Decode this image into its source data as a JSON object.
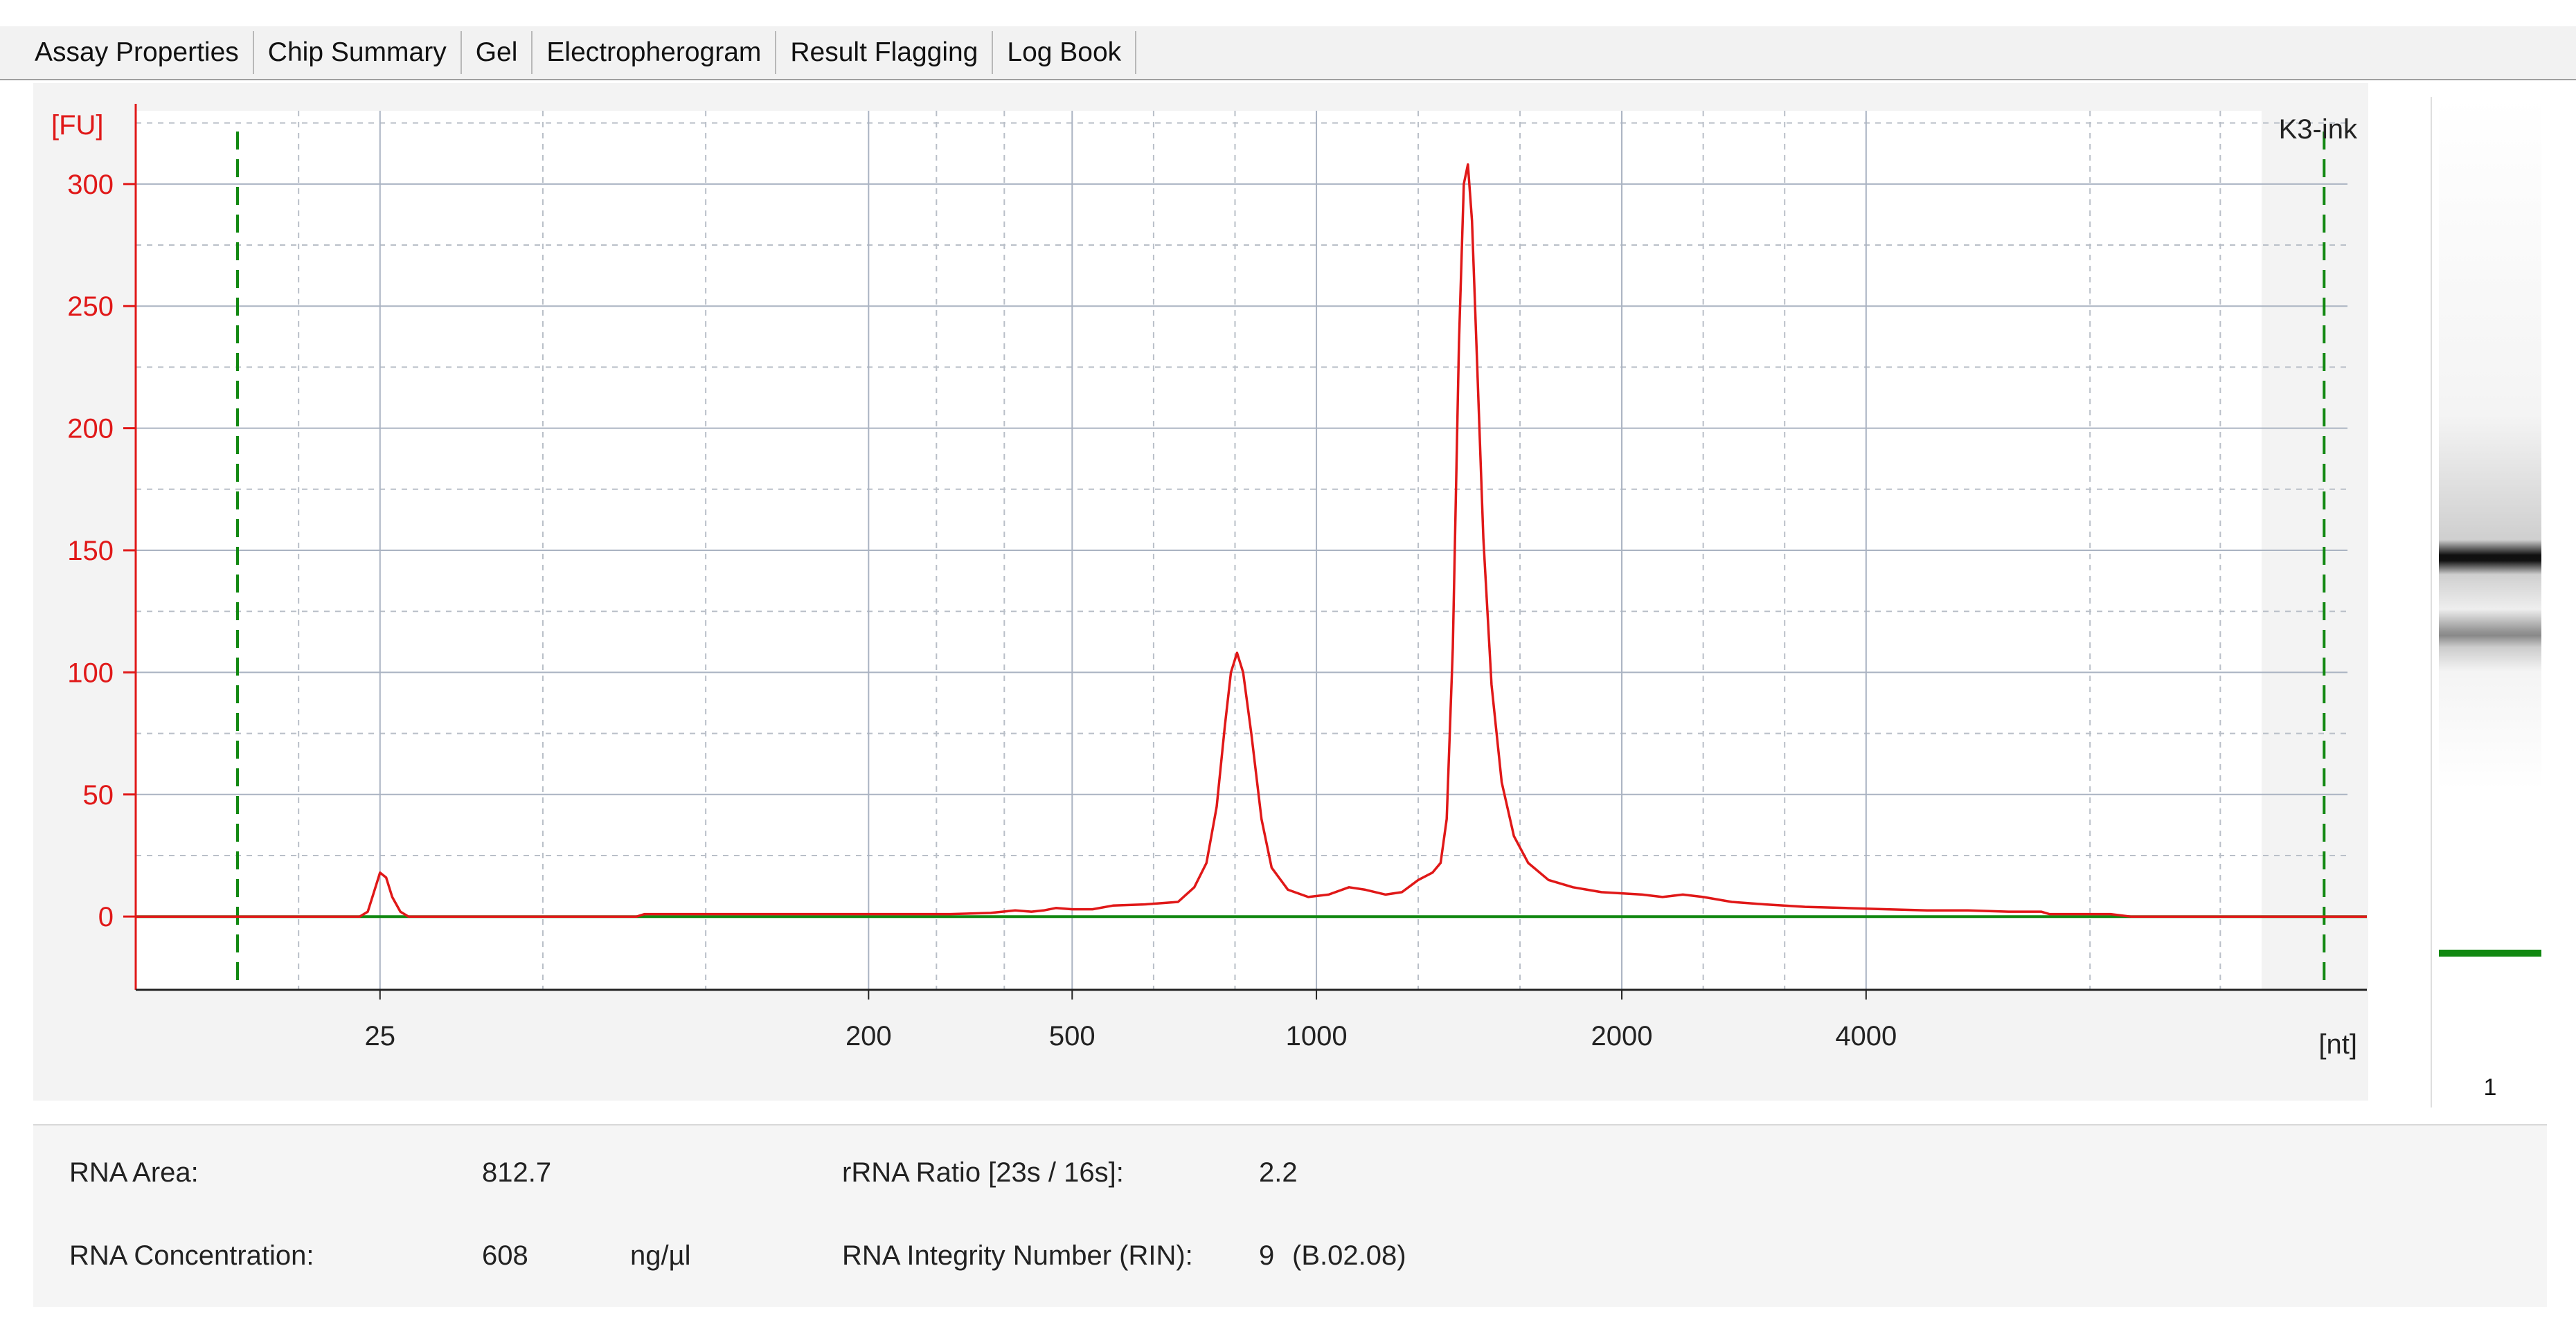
{
  "tabs": [
    {
      "label": "Assay Properties"
    },
    {
      "label": "Chip Summary"
    },
    {
      "label": "Gel"
    },
    {
      "label": "Electropherogram"
    },
    {
      "label": "Result Flagging"
    },
    {
      "label": "Log Book"
    }
  ],
  "chart": {
    "sample_name": "K3-ink",
    "y_unit": "[FU]",
    "x_unit": "[nt]"
  },
  "chart_data": {
    "type": "line",
    "ylabel": "[FU]",
    "xlabel": "[nt]",
    "ylim": [
      -30,
      330
    ],
    "yticks": [
      0,
      50,
      100,
      150,
      200,
      250,
      300
    ],
    "xticks": [
      {
        "label": "25",
        "seconds": 23.0
      },
      {
        "label": "200",
        "seconds": 35.0
      },
      {
        "label": "500",
        "seconds": 40.0
      },
      {
        "label": "1000",
        "seconds": 46.0
      },
      {
        "label": "2000",
        "seconds": 53.5
      },
      {
        "label": "4000",
        "seconds": 59.5
      }
    ],
    "xlim": [
      17.0,
      71.8
    ],
    "marker_lines_seconds": [
      19.5,
      70.75
    ],
    "series": [
      {
        "color": "#e01818",
        "points": [
          [
            17.0,
            0
          ],
          [
            22.5,
            0
          ],
          [
            22.7,
            2
          ],
          [
            22.85,
            10
          ],
          [
            23.0,
            18
          ],
          [
            23.15,
            16
          ],
          [
            23.3,
            8
          ],
          [
            23.5,
            2
          ],
          [
            23.7,
            0
          ],
          [
            29.3,
            0
          ],
          [
            29.5,
            1
          ],
          [
            31.0,
            1
          ],
          [
            33.0,
            1
          ],
          [
            35.0,
            1
          ],
          [
            37.0,
            1
          ],
          [
            38.0,
            1.5
          ],
          [
            38.6,
            2.5
          ],
          [
            39.0,
            2
          ],
          [
            39.3,
            2.5
          ],
          [
            39.6,
            3.5
          ],
          [
            40.0,
            3
          ],
          [
            40.5,
            3
          ],
          [
            41.0,
            4.5
          ],
          [
            41.8,
            5
          ],
          [
            42.6,
            6
          ],
          [
            43.0,
            12
          ],
          [
            43.3,
            22
          ],
          [
            43.55,
            45
          ],
          [
            43.75,
            78
          ],
          [
            43.9,
            100
          ],
          [
            44.05,
            108
          ],
          [
            44.2,
            100
          ],
          [
            44.4,
            75
          ],
          [
            44.65,
            40
          ],
          [
            44.9,
            20
          ],
          [
            45.3,
            11
          ],
          [
            45.8,
            8
          ],
          [
            46.3,
            9
          ],
          [
            46.8,
            12
          ],
          [
            47.2,
            11
          ],
          [
            47.7,
            9
          ],
          [
            48.1,
            10
          ],
          [
            48.5,
            15
          ],
          [
            48.85,
            18
          ],
          [
            49.05,
            22
          ],
          [
            49.2,
            40
          ],
          [
            49.35,
            110
          ],
          [
            49.5,
            235
          ],
          [
            49.62,
            300
          ],
          [
            49.72,
            308
          ],
          [
            49.82,
            285
          ],
          [
            49.95,
            225
          ],
          [
            50.1,
            155
          ],
          [
            50.3,
            95
          ],
          [
            50.55,
            55
          ],
          [
            50.85,
            33
          ],
          [
            51.2,
            22
          ],
          [
            51.7,
            15
          ],
          [
            52.3,
            12
          ],
          [
            53.0,
            10
          ],
          [
            54.0,
            9
          ],
          [
            54.5,
            8
          ],
          [
            55.0,
            9
          ],
          [
            55.5,
            8
          ],
          [
            56.2,
            6
          ],
          [
            57.0,
            5
          ],
          [
            58.0,
            4
          ],
          [
            59.0,
            3.5
          ],
          [
            60.0,
            3
          ],
          [
            61.0,
            2.5
          ],
          [
            62.0,
            2.5
          ],
          [
            63.0,
            2
          ],
          [
            63.8,
            2
          ],
          [
            64.0,
            1
          ],
          [
            65.5,
            1
          ],
          [
            66.0,
            0
          ],
          [
            71.8,
            0
          ]
        ]
      },
      {
        "color": "#118811",
        "points": [
          [
            17.0,
            0
          ],
          [
            71.8,
            0
          ]
        ]
      }
    ]
  },
  "gel": {
    "lane_number": "1"
  },
  "results": {
    "rna_area_label": "RNA Area:",
    "rna_area_value": "812.7",
    "rna_conc_label": "RNA Concentration:",
    "rna_conc_value": "608",
    "rna_conc_unit": "ng/µl",
    "rrna_ratio_label": "rRNA Ratio [23s / 16s]:",
    "rrna_ratio_value": "2.2",
    "rin_label": "RNA Integrity Number (RIN):",
    "rin_value": "9",
    "rin_version": "(B.02.08)"
  },
  "colors": {
    "curve": "#e01818",
    "baseline": "#118811",
    "marker_lines": "#118811",
    "y_axis": "#e01818",
    "grid": "#aab3c2"
  }
}
